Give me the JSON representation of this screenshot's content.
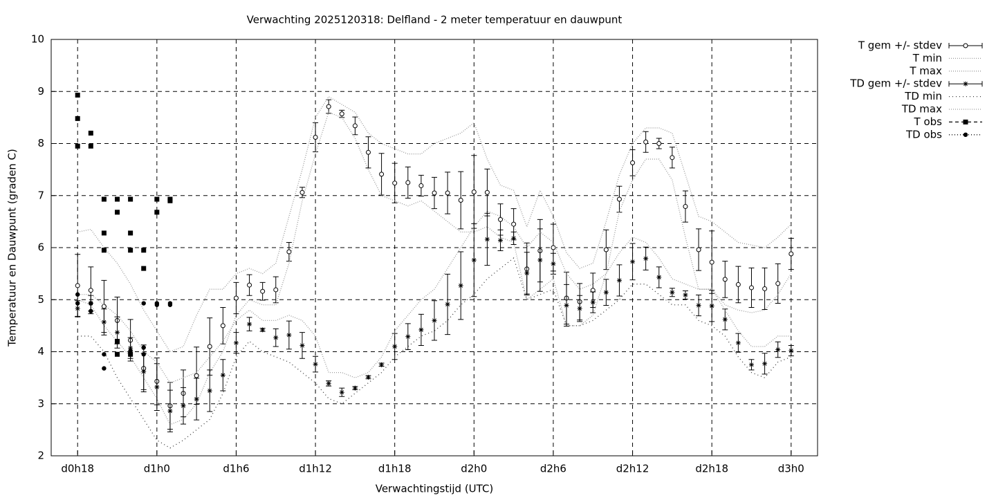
{
  "chart_data": {
    "type": "errorbar",
    "title": "Verwachting 2025120318: Delfland - 2 meter temperatuur en dauwpunt",
    "xlabel": "Verwachtingstijd (UTC)",
    "ylabel": "Temperatuur en Dauwpunt (graden C)",
    "xlim": [
      16,
      74
    ],
    "ylim": [
      2,
      10
    ],
    "xticks": [
      {
        "value": 18,
        "label": "d0h18"
      },
      {
        "value": 24,
        "label": "d1h0"
      },
      {
        "value": 30,
        "label": "d1h6"
      },
      {
        "value": 36,
        "label": "d1h12"
      },
      {
        "value": 42,
        "label": "d1h18"
      },
      {
        "value": 48,
        "label": "d2h0"
      },
      {
        "value": 54,
        "label": "d2h6"
      },
      {
        "value": 60,
        "label": "d2h12"
      },
      {
        "value": 66,
        "label": "d2h18"
      },
      {
        "value": 72,
        "label": "d3h0"
      }
    ],
    "yticks": [
      2,
      3,
      4,
      5,
      6,
      7,
      8,
      9,
      10
    ],
    "grid": true,
    "legend": "outside-right",
    "x": [
      18,
      19,
      20,
      21,
      22,
      23,
      24,
      25,
      26,
      27,
      28,
      29,
      30,
      31,
      32,
      33,
      34,
      35,
      36,
      37,
      38,
      39,
      40,
      41,
      42,
      43,
      44,
      45,
      46,
      47,
      48,
      49,
      50,
      51,
      52,
      53,
      54,
      55,
      56,
      57,
      58,
      59,
      60,
      61,
      62,
      63,
      64,
      65,
      66,
      67,
      68,
      69,
      70,
      71,
      72
    ],
    "series": [
      {
        "name": "T gem +/- stdev",
        "kind": "errorbar",
        "marker": "circle",
        "color": "#000000",
        "values": [
          5.27,
          5.18,
          4.87,
          4.6,
          4.22,
          3.68,
          3.43,
          2.96,
          3.2,
          3.54,
          4.1,
          4.5,
          5.03,
          5.28,
          5.16,
          5.19,
          5.92,
          7.06,
          8.12,
          8.71,
          8.57,
          8.34,
          7.83,
          7.41,
          7.24,
          7.25,
          7.19,
          7.05,
          7.05,
          6.91,
          7.07,
          7.06,
          6.54,
          6.45,
          5.59,
          5.94,
          6.0,
          5.03,
          4.96,
          5.18,
          5.96,
          6.93,
          7.63,
          8.03,
          8.0,
          7.73,
          6.79,
          5.96,
          5.72,
          5.39,
          5.29,
          5.23,
          5.21,
          5.31,
          5.88
        ],
        "errors": [
          0.6,
          0.45,
          0.5,
          0.45,
          0.4,
          0.45,
          0.45,
          0.45,
          0.45,
          0.55,
          0.55,
          0.35,
          0.3,
          0.2,
          0.17,
          0.25,
          0.18,
          0.1,
          0.28,
          0.13,
          0.07,
          0.17,
          0.3,
          0.4,
          0.38,
          0.3,
          0.2,
          0.3,
          0.4,
          0.55,
          0.7,
          0.45,
          0.3,
          0.3,
          0.5,
          0.6,
          0.45,
          0.5,
          0.35,
          0.33,
          0.38,
          0.25,
          0.25,
          0.2,
          0.1,
          0.2,
          0.3,
          0.4,
          0.6,
          0.35,
          0.35,
          0.38,
          0.4,
          0.38,
          0.3
        ]
      },
      {
        "name": "T min",
        "kind": "line",
        "dash": "1 2",
        "color": "#999999",
        "values": [
          5.0,
          4.9,
          4.5,
          4.2,
          3.9,
          3.5,
          3.1,
          2.6,
          2.7,
          3.0,
          3.6,
          4.0,
          4.7,
          5.0,
          4.9,
          4.9,
          5.7,
          6.9,
          7.8,
          8.6,
          8.5,
          8.1,
          7.5,
          7.0,
          6.9,
          6.8,
          6.9,
          6.7,
          6.5,
          6.3,
          6.3,
          6.4,
          6.2,
          6.1,
          5.0,
          5.2,
          5.4,
          4.5,
          4.5,
          4.7,
          5.5,
          6.7,
          7.3,
          7.7,
          7.7,
          7.3,
          6.2,
          5.2,
          5.2,
          4.9,
          4.8,
          4.75,
          4.8,
          5.1,
          5.5
        ]
      },
      {
        "name": "T max",
        "kind": "line",
        "dash": "1 2",
        "color": "#999999",
        "values": [
          6.3,
          6.35,
          6.0,
          5.7,
          5.3,
          4.8,
          4.4,
          4.0,
          4.1,
          4.7,
          5.2,
          5.2,
          5.5,
          5.6,
          5.5,
          5.7,
          6.6,
          7.5,
          8.5,
          8.9,
          8.75,
          8.6,
          8.2,
          8.0,
          7.9,
          7.8,
          7.8,
          8.0,
          8.1,
          8.2,
          8.4,
          7.7,
          7.2,
          7.1,
          6.4,
          7.1,
          6.6,
          5.9,
          5.6,
          5.7,
          6.5,
          7.4,
          8.0,
          8.3,
          8.3,
          8.2,
          7.4,
          6.6,
          6.5,
          6.3,
          6.1,
          6.05,
          6.0,
          6.2,
          6.45
        ]
      },
      {
        "name": "TD gem +/- stdev",
        "kind": "errorbar",
        "marker": "star",
        "color": "#000000",
        "values": [
          4.83,
          4.93,
          4.57,
          4.37,
          4.07,
          3.62,
          3.32,
          2.86,
          2.96,
          3.09,
          3.25,
          3.55,
          4.17,
          4.53,
          4.42,
          4.27,
          4.32,
          4.12,
          3.76,
          3.39,
          3.22,
          3.3,
          3.51,
          3.75,
          4.1,
          4.29,
          4.42,
          4.6,
          4.91,
          5.27,
          5.76,
          6.16,
          6.14,
          6.18,
          5.51,
          5.76,
          5.69,
          4.89,
          4.83,
          4.95,
          5.14,
          5.37,
          5.73,
          5.79,
          5.43,
          5.14,
          5.09,
          4.89,
          4.88,
          4.62,
          4.17,
          3.75,
          3.77,
          4.04,
          4.02
        ],
        "errors": [
          0.15,
          0.15,
          0.25,
          0.3,
          0.2,
          0.35,
          0.45,
          0.4,
          0.35,
          0.4,
          0.4,
          0.3,
          0.2,
          0.13,
          0.03,
          0.17,
          0.27,
          0.25,
          0.15,
          0.05,
          0.08,
          0.03,
          0.03,
          0.03,
          0.25,
          0.25,
          0.3,
          0.38,
          0.58,
          0.65,
          0.7,
          0.5,
          0.2,
          0.12,
          0.4,
          0.6,
          0.2,
          0.4,
          0.25,
          0.2,
          0.25,
          0.3,
          0.35,
          0.22,
          0.2,
          0.08,
          0.08,
          0.2,
          0.3,
          0.2,
          0.18,
          0.1,
          0.2,
          0.15,
          0.1
        ]
      },
      {
        "name": "TD min",
        "kind": "line",
        "dash": "1 4",
        "color": "#333333",
        "values": [
          4.3,
          4.3,
          4.0,
          3.5,
          3.1,
          2.7,
          2.3,
          2.15,
          2.3,
          2.5,
          2.7,
          3.2,
          3.9,
          4.2,
          4.0,
          3.9,
          3.8,
          3.6,
          3.4,
          3.1,
          3.0,
          3.2,
          3.4,
          3.6,
          3.9,
          4.1,
          4.3,
          4.4,
          4.6,
          4.9,
          5.1,
          5.4,
          5.6,
          5.8,
          5.0,
          5.1,
          5.2,
          4.5,
          4.5,
          4.6,
          4.8,
          5.0,
          5.3,
          5.3,
          5.1,
          4.9,
          4.9,
          4.6,
          4.5,
          4.3,
          3.9,
          3.6,
          3.5,
          3.8,
          3.9
        ]
      },
      {
        "name": "TD max",
        "kind": "line",
        "dash": "1 2",
        "color": "#999999",
        "values": [
          5.1,
          5.1,
          4.9,
          4.7,
          4.4,
          4.0,
          3.8,
          3.4,
          3.5,
          3.6,
          3.9,
          4.2,
          4.6,
          4.8,
          4.6,
          4.6,
          4.7,
          4.6,
          4.3,
          3.6,
          3.6,
          3.5,
          3.6,
          3.9,
          4.4,
          4.7,
          5.0,
          5.2,
          5.6,
          6.0,
          6.4,
          6.7,
          6.6,
          6.4,
          6.0,
          6.3,
          6.1,
          5.5,
          5.2,
          5.3,
          5.5,
          5.9,
          6.2,
          6.1,
          5.8,
          5.4,
          5.3,
          5.2,
          5.2,
          4.8,
          4.4,
          4.1,
          4.1,
          4.3,
          4.3
        ]
      },
      {
        "name": "T obs",
        "kind": "points",
        "marker": "square",
        "dash": "5 4",
        "color": "#000000",
        "x": [
          18,
          18,
          18,
          19,
          19,
          20,
          20,
          20,
          21,
          21,
          21,
          21,
          22,
          22,
          22,
          22,
          23,
          23,
          24,
          24,
          25,
          25
        ],
        "values": [
          8.93,
          8.48,
          7.95,
          8.2,
          7.95,
          6.93,
          6.28,
          5.95,
          6.93,
          6.68,
          4.2,
          3.95,
          6.93,
          6.28,
          5.95,
          3.95,
          5.95,
          5.6,
          6.93,
          6.68,
          6.93,
          6.9
        ]
      },
      {
        "name": "TD obs",
        "kind": "points",
        "marker": "dot",
        "dash": "1 3",
        "color": "#000000",
        "x": [
          18,
          18,
          19,
          19,
          20,
          20,
          21,
          21,
          22,
          22,
          23,
          23,
          23,
          24,
          24,
          25,
          25
        ],
        "values": [
          5.1,
          4.93,
          4.93,
          4.78,
          3.95,
          3.68,
          4.2,
          3.95,
          3.95,
          4.02,
          4.93,
          4.08,
          3.95,
          4.93,
          4.9,
          4.93,
          4.9
        ]
      }
    ]
  }
}
